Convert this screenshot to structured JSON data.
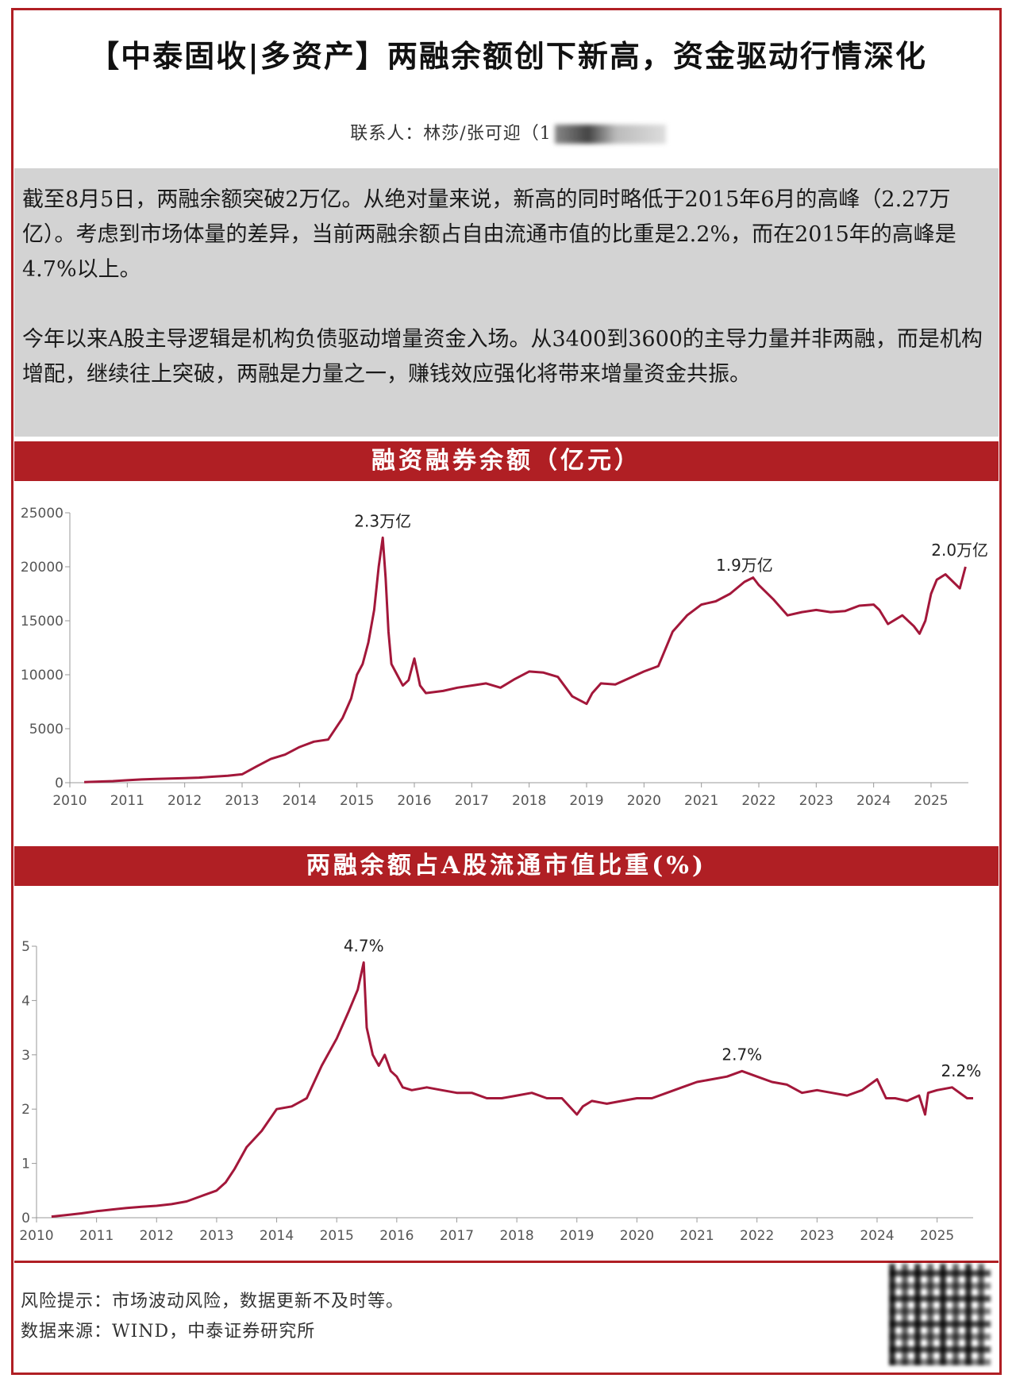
{
  "header": {
    "title": "【中泰固收|多资产】两融余额创下新高，资金驱动行情深化",
    "contact_label": "联系人：林莎/张可迎（1"
  },
  "summary": {
    "paragraph1": "截至8月5日，两融余额突破2万亿。从绝对量来说，新高的同时略低于2015年6月的高峰（2.27万亿）。考虑到市场体量的差异，当前两融余额占自由流通市值的比重是2.2%，而在2015年的高峰是4.7%以上。",
    "paragraph2": "今年以来A股主导逻辑是机构负债驱动增量资金入场。从3400到3600的主导力量并非两融，而是机构增配，继续往上突破，两融是力量之一，赚钱效应强化将带来增量资金共振。"
  },
  "footer": {
    "risk": "风险提示：市场波动风险，数据更新不及时等。",
    "source": "数据来源：WIND，中泰证券研究所"
  },
  "colors": {
    "accent": "#b01f24",
    "line": "#a3173a",
    "summary_bg": "#d3d3d3"
  },
  "chart_data": [
    {
      "type": "line",
      "title": "融资融券余额（亿元）",
      "xlabel": "",
      "ylabel": "",
      "xlim": [
        2010,
        2025.65
      ],
      "ylim": [
        0,
        25000
      ],
      "x_ticks": [
        "2010",
        "2011",
        "2012",
        "2013",
        "2014",
        "2015",
        "2016",
        "2017",
        "2018",
        "2019",
        "2020",
        "2021",
        "2022",
        "2023",
        "2024",
        "2025"
      ],
      "y_ticks": [
        "0",
        "5000",
        "10000",
        "15000",
        "20000",
        "25000"
      ],
      "grid": false,
      "series": [
        {
          "x": [
            2010.25,
            2010.5,
            2010.75,
            2011.0,
            2011.25,
            2011.5,
            2011.75,
            2012.0,
            2012.25,
            2012.5,
            2012.75,
            2013.0,
            2013.25,
            2013.5,
            2013.75,
            2014.0,
            2014.25,
            2014.5,
            2014.75,
            2014.9,
            2015.0,
            2015.1,
            2015.2,
            2015.3,
            2015.38,
            2015.45,
            2015.5,
            2015.55,
            2015.6,
            2015.7,
            2015.8,
            2015.9,
            2016.0,
            2016.1,
            2016.2,
            2016.5,
            2016.75,
            2017.0,
            2017.25,
            2017.5,
            2017.75,
            2018.0,
            2018.25,
            2018.5,
            2018.75,
            2019.0,
            2019.1,
            2019.25,
            2019.5,
            2019.75,
            2020.0,
            2020.25,
            2020.5,
            2020.75,
            2021.0,
            2021.25,
            2021.5,
            2021.75,
            2021.9,
            2022.0,
            2022.25,
            2022.5,
            2022.75,
            2023.0,
            2023.25,
            2023.5,
            2023.75,
            2024.0,
            2024.1,
            2024.25,
            2024.5,
            2024.7,
            2024.8,
            2024.9,
            2025.0,
            2025.1,
            2025.25,
            2025.5,
            2025.6
          ],
          "values": [
            50,
            100,
            150,
            230,
            300,
            350,
            380,
            420,
            470,
            560,
            650,
            780,
            1500,
            2200,
            2600,
            3300,
            3800,
            4000,
            6000,
            7800,
            10000,
            11000,
            13000,
            16000,
            20000,
            22700,
            19000,
            14000,
            11000,
            10000,
            9000,
            9500,
            11500,
            9000,
            8300,
            8500,
            8800,
            9000,
            9200,
            8800,
            9600,
            10300,
            10200,
            9800,
            8000,
            7300,
            8300,
            9200,
            9100,
            9700,
            10300,
            10800,
            14000,
            15500,
            16500,
            16800,
            17500,
            18600,
            19000,
            18300,
            17000,
            15500,
            15800,
            16000,
            15800,
            15900,
            16400,
            16500,
            16000,
            14700,
            15500,
            14500,
            13800,
            15000,
            17500,
            18800,
            19300,
            18000,
            20000
          ]
        }
      ],
      "annotations": [
        {
          "text": "2.3万亿",
          "x": 2015.45,
          "y": 22700
        },
        {
          "text": "1.9万亿",
          "x": 2021.75,
          "y": 18600
        },
        {
          "text": "2.0万亿",
          "x": 2025.5,
          "y": 20000
        }
      ]
    },
    {
      "type": "line",
      "title": "两融余额占A股流通市值比重(%)",
      "xlabel": "",
      "ylabel": "",
      "xlim": [
        2010,
        2025.6
      ],
      "ylim": [
        0,
        5
      ],
      "x_ticks": [
        "2010",
        "2011",
        "2012",
        "2013",
        "2014",
        "2015",
        "2016",
        "2017",
        "2018",
        "2019",
        "2020",
        "2021",
        "2022",
        "2023",
        "2024",
        "2025"
      ],
      "y_ticks": [
        "0",
        "1",
        "2",
        "3",
        "4",
        "5"
      ],
      "grid": false,
      "series": [
        {
          "x": [
            2010.25,
            2010.5,
            2010.75,
            2011.0,
            2011.25,
            2011.5,
            2011.75,
            2012.0,
            2012.25,
            2012.5,
            2012.75,
            2013.0,
            2013.15,
            2013.3,
            2013.5,
            2013.75,
            2014.0,
            2014.25,
            2014.5,
            2014.75,
            2015.0,
            2015.2,
            2015.35,
            2015.45,
            2015.5,
            2015.6,
            2015.7,
            2015.8,
            2015.9,
            2016.0,
            2016.1,
            2016.25,
            2016.5,
            2016.75,
            2017.0,
            2017.25,
            2017.5,
            2017.75,
            2018.0,
            2018.25,
            2018.5,
            2018.75,
            2019.0,
            2019.1,
            2019.25,
            2019.5,
            2019.75,
            2020.0,
            2020.25,
            2020.5,
            2020.75,
            2021.0,
            2021.25,
            2021.5,
            2021.75,
            2022.0,
            2022.25,
            2022.5,
            2022.75,
            2023.0,
            2023.25,
            2023.5,
            2023.75,
            2024.0,
            2024.15,
            2024.3,
            2024.5,
            2024.7,
            2024.8,
            2024.85,
            2025.0,
            2025.25,
            2025.5,
            2025.6
          ],
          "values": [
            0.02,
            0.05,
            0.08,
            0.12,
            0.15,
            0.18,
            0.2,
            0.22,
            0.25,
            0.3,
            0.4,
            0.5,
            0.65,
            0.9,
            1.3,
            1.6,
            2.0,
            2.05,
            2.2,
            2.8,
            3.3,
            3.8,
            4.2,
            4.7,
            3.5,
            3.0,
            2.8,
            3.0,
            2.7,
            2.6,
            2.4,
            2.35,
            2.4,
            2.35,
            2.3,
            2.3,
            2.2,
            2.2,
            2.25,
            2.3,
            2.2,
            2.2,
            1.9,
            2.05,
            2.15,
            2.1,
            2.15,
            2.2,
            2.2,
            2.3,
            2.4,
            2.5,
            2.55,
            2.6,
            2.7,
            2.6,
            2.5,
            2.45,
            2.3,
            2.35,
            2.3,
            2.25,
            2.35,
            2.55,
            2.2,
            2.2,
            2.15,
            2.25,
            1.9,
            2.3,
            2.35,
            2.4,
            2.2,
            2.2
          ]
        }
      ],
      "annotations": [
        {
          "text": "4.7%",
          "x": 2015.45,
          "y": 4.7
        },
        {
          "text": "2.7%",
          "x": 2021.75,
          "y": 2.7
        },
        {
          "text": "2.2%",
          "x": 2025.4,
          "y": 2.4
        }
      ]
    }
  ]
}
